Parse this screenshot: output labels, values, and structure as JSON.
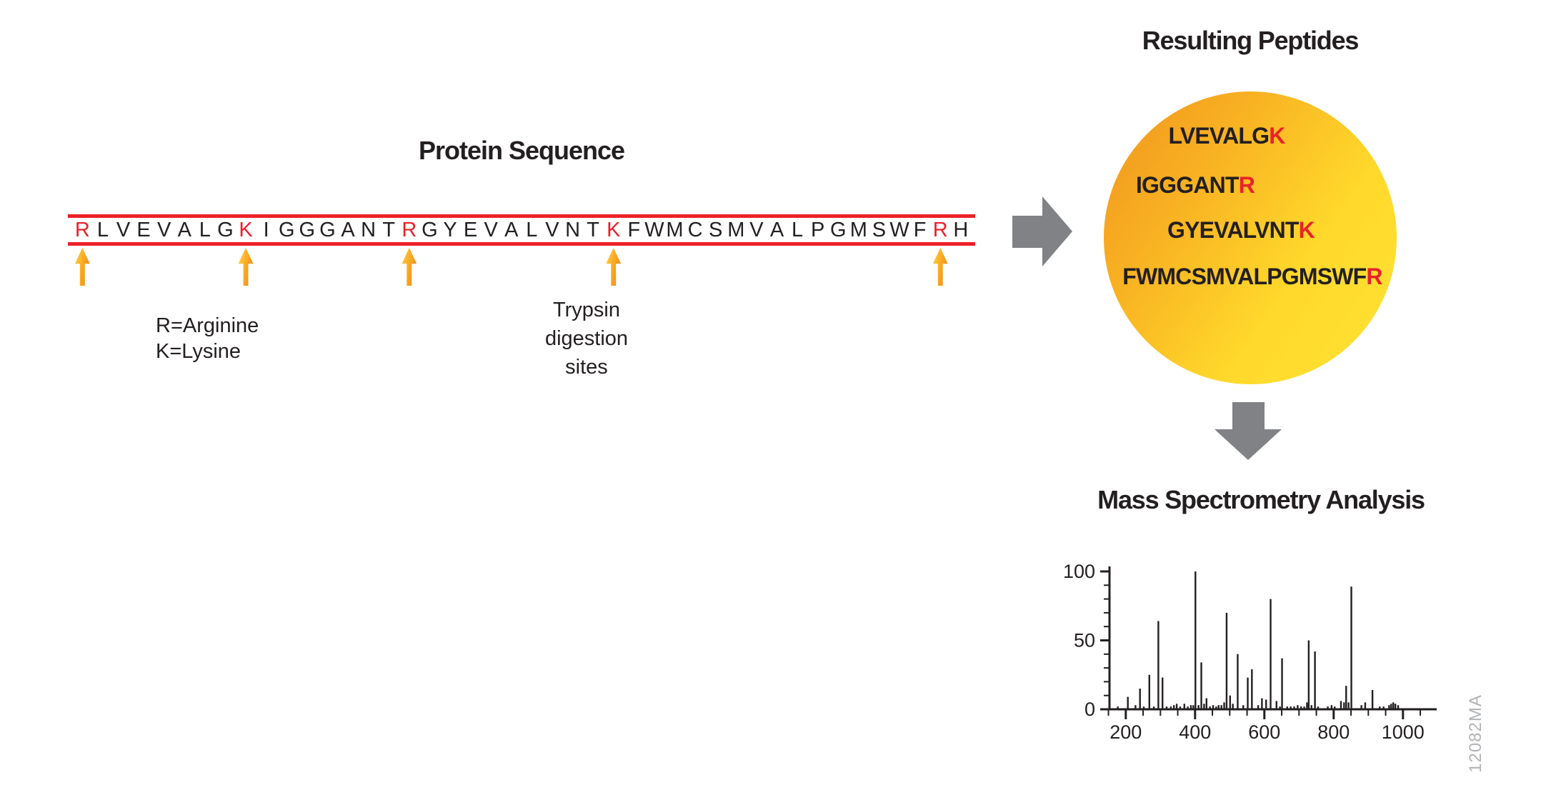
{
  "colors": {
    "red": "#EC2027",
    "text_dark": "#231F20",
    "flow_arrow_gray": "#808285",
    "site_arrow_orange_light": "#FFD24A",
    "site_arrow_orange_dark": "#E8831A",
    "circle_gradient_start": "#F0931E",
    "circle_gradient_end": "#FFE334",
    "figure_id_gray": "#B1B3B6"
  },
  "protein_section": {
    "title": "Protein Sequence",
    "sequence": "RLVEVALGKIGGGANTRGYEVALVNTKFWMCSMVALPGMSWFRH",
    "cleavage_indices": [
      0,
      8,
      16,
      26,
      42
    ],
    "legend": [
      "R=Arginine",
      "K=Lysine"
    ],
    "site_label_lines": [
      "Trypsin",
      "digestion",
      "sites"
    ]
  },
  "peptides_section": {
    "title": "Resulting Peptides",
    "peptides": [
      {
        "body": "LVEVALG",
        "terminal": "K"
      },
      {
        "body": "IGGGANT",
        "terminal": "R"
      },
      {
        "body": "GYEVALVNT",
        "terminal": "K"
      },
      {
        "body": "FWMCSMVALPGMSWF",
        "terminal": "R"
      }
    ]
  },
  "ms_section": {
    "title": "Mass Spectrometry Analysis",
    "figure_id": "12082MA"
  },
  "chart_data": {
    "type": "bar",
    "title": "Mass Spectrometry Analysis",
    "xlabel": "",
    "ylabel": "",
    "xlim": [
      150,
      1100
    ],
    "ylim": [
      0,
      100
    ],
    "x_ticks": [
      200,
      400,
      600,
      800,
      1000
    ],
    "y_ticks": [
      0,
      50,
      100
    ],
    "x_minor_tick_step": 50,
    "y_minor_tick_step": 10,
    "grid": false,
    "legend_position": "none",
    "peaks": [
      [
        177,
        2
      ],
      [
        206,
        9
      ],
      [
        228,
        3
      ],
      [
        241,
        15
      ],
      [
        252,
        2
      ],
      [
        268,
        25
      ],
      [
        281,
        2
      ],
      [
        294,
        64
      ],
      [
        306,
        23
      ],
      [
        318,
        2
      ],
      [
        330,
        2
      ],
      [
        339,
        3
      ],
      [
        347,
        4
      ],
      [
        357,
        2
      ],
      [
        369,
        4
      ],
      [
        379,
        2
      ],
      [
        388,
        3
      ],
      [
        395,
        3
      ],
      [
        401,
        100
      ],
      [
        410,
        3
      ],
      [
        418,
        34
      ],
      [
        426,
        4
      ],
      [
        433,
        8
      ],
      [
        443,
        2
      ],
      [
        452,
        3
      ],
      [
        461,
        2
      ],
      [
        468,
        3
      ],
      [
        476,
        3
      ],
      [
        484,
        5
      ],
      [
        491,
        70
      ],
      [
        501,
        10
      ],
      [
        509,
        4
      ],
      [
        523,
        40
      ],
      [
        539,
        3
      ],
      [
        552,
        23
      ],
      [
        564,
        29
      ],
      [
        582,
        3
      ],
      [
        593,
        8
      ],
      [
        605,
        7
      ],
      [
        618,
        80
      ],
      [
        635,
        6
      ],
      [
        645,
        2
      ],
      [
        651,
        37
      ],
      [
        666,
        2
      ],
      [
        676,
        2
      ],
      [
        686,
        2
      ],
      [
        696,
        3
      ],
      [
        706,
        2
      ],
      [
        715,
        2
      ],
      [
        723,
        5
      ],
      [
        728,
        50
      ],
      [
        736,
        3
      ],
      [
        746,
        42
      ],
      [
        755,
        2
      ],
      [
        783,
        2
      ],
      [
        794,
        3
      ],
      [
        803,
        2
      ],
      [
        821,
        6
      ],
      [
        830,
        5
      ],
      [
        836,
        17
      ],
      [
        843,
        5
      ],
      [
        851,
        89
      ],
      [
        880,
        3
      ],
      [
        891,
        5
      ],
      [
        912,
        14
      ],
      [
        933,
        2
      ],
      [
        944,
        2
      ],
      [
        960,
        3
      ],
      [
        966,
        4
      ],
      [
        972,
        5
      ],
      [
        978,
        4
      ],
      [
        986,
        3
      ]
    ]
  }
}
